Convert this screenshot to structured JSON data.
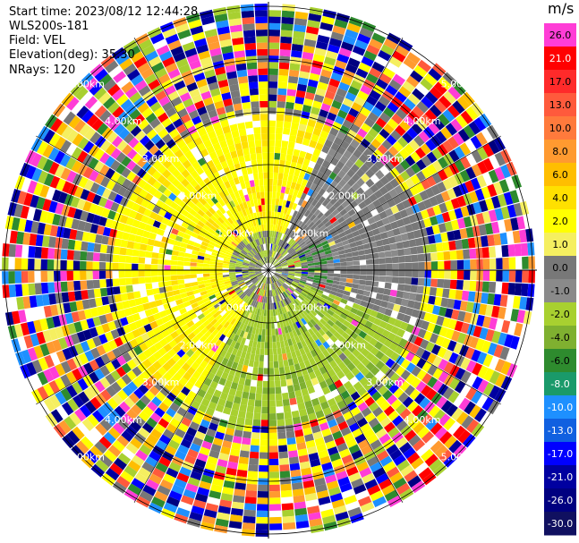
{
  "header": {
    "start_time": "Start time: 2023/08/12 12:44:28",
    "instrument": "WLS200s-181",
    "field": "Field: VEL",
    "elevation": "Elevation(deg): 35.30",
    "nrays": "NRays: 120"
  },
  "colorbar": {
    "unit": "m/s",
    "ticks": [
      "26.0",
      "21.0",
      "17.0",
      "13.0",
      "10.0",
      "8.0",
      "6.0",
      "4.0",
      "2.0",
      "1.0",
      "0.0",
      "-1.0",
      "-2.0",
      "-4.0",
      "-6.0",
      "-8.0",
      "-10.0",
      "-13.0",
      "-17.0",
      "-21.0",
      "-26.0",
      "-30.0"
    ],
    "colors": [
      "#ff3dd6",
      "#ff0000",
      "#ff2a2a",
      "#ff5a3c",
      "#ff7a3c",
      "#ff9a30",
      "#ffbe00",
      "#ffe000",
      "#ffff00",
      "#f5ef60",
      "#787878",
      "#8a8a8a",
      "#a8d030",
      "#7fb030",
      "#2e8b2e",
      "#1a9a6a",
      "#1e90ff",
      "#1060e0",
      "#0000ff",
      "#0000a0",
      "#000080",
      "#101060"
    ]
  },
  "map": {
    "range_labels": [
      "1.00km",
      "2.00km",
      "3.00km",
      "4.00km",
      "5.00km"
    ],
    "ring_km": [
      1,
      2,
      3,
      4,
      5
    ]
  }
}
